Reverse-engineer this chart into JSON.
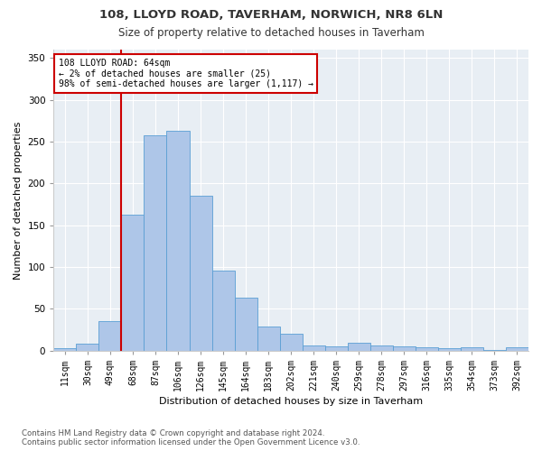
{
  "title": "108, LLOYD ROAD, TAVERHAM, NORWICH, NR8 6LN",
  "subtitle": "Size of property relative to detached houses in Taverham",
  "xlabel": "Distribution of detached houses by size in Taverham",
  "ylabel": "Number of detached properties",
  "categories": [
    "11sqm",
    "30sqm",
    "49sqm",
    "68sqm",
    "87sqm",
    "106sqm",
    "126sqm",
    "145sqm",
    "164sqm",
    "183sqm",
    "202sqm",
    "221sqm",
    "240sqm",
    "259sqm",
    "278sqm",
    "297sqm",
    "316sqm",
    "335sqm",
    "354sqm",
    "373sqm",
    "392sqm"
  ],
  "bar_values": [
    3,
    8,
    35,
    163,
    257,
    263,
    185,
    96,
    63,
    29,
    20,
    6,
    5,
    10,
    6,
    5,
    4,
    3,
    4,
    1,
    4
  ],
  "bar_color": "#aec6e8",
  "bar_edge_color": "#5a9fd4",
  "vline_x_index": 3,
  "vline_color": "#cc0000",
  "annotation_text": "108 LLOYD ROAD: 64sqm\n← 2% of detached houses are smaller (25)\n98% of semi-detached houses are larger (1,117) →",
  "annotation_box_color": "#ffffff",
  "annotation_box_edge": "#cc0000",
  "ylim": [
    0,
    360
  ],
  "yticks": [
    0,
    50,
    100,
    150,
    200,
    250,
    300,
    350
  ],
  "bg_color": "#e8eef4",
  "grid_color": "#ffffff",
  "fig_bg_color": "#ffffff",
  "footer_line1": "Contains HM Land Registry data © Crown copyright and database right 2024.",
  "footer_line2": "Contains public sector information licensed under the Open Government Licence v3.0.",
  "title_fontsize": 9.5,
  "subtitle_fontsize": 8.5,
  "ylabel_fontsize": 8,
  "xlabel_fontsize": 8,
  "tick_fontsize": 7,
  "footer_fontsize": 6.2
}
